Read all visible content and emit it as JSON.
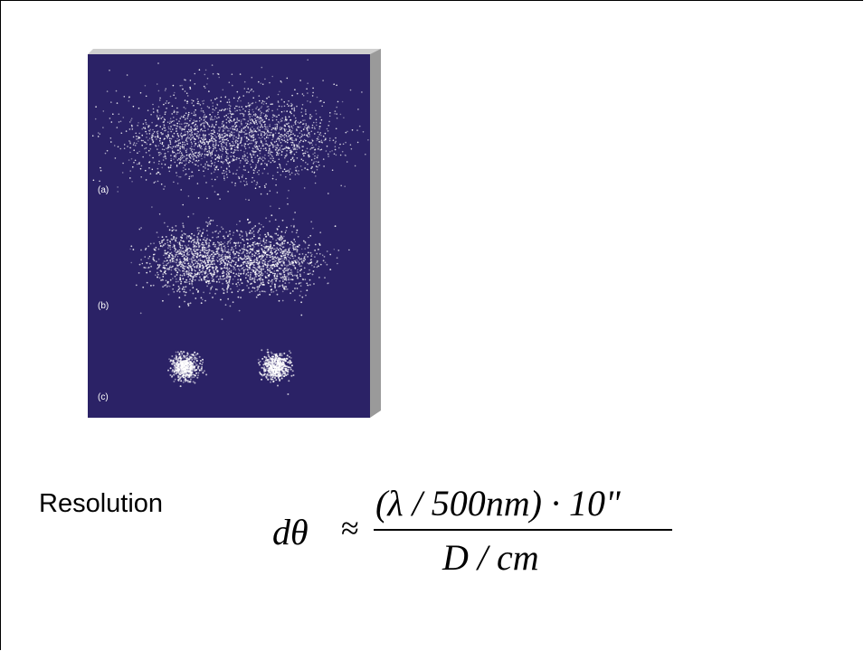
{
  "figure": {
    "panel_labels": [
      "(a)",
      "(b)",
      "(c)"
    ],
    "background_color": "#2b2266",
    "edge_color": "#9a9a9a",
    "dot_color": "#ffffff"
  },
  "text": {
    "resolution_label": "Resolution"
  },
  "formula": {
    "lhs": "dθ",
    "relation": "≈",
    "numerator": "(λ / 500nm) · 10\"",
    "denominator": "D / cm"
  }
}
